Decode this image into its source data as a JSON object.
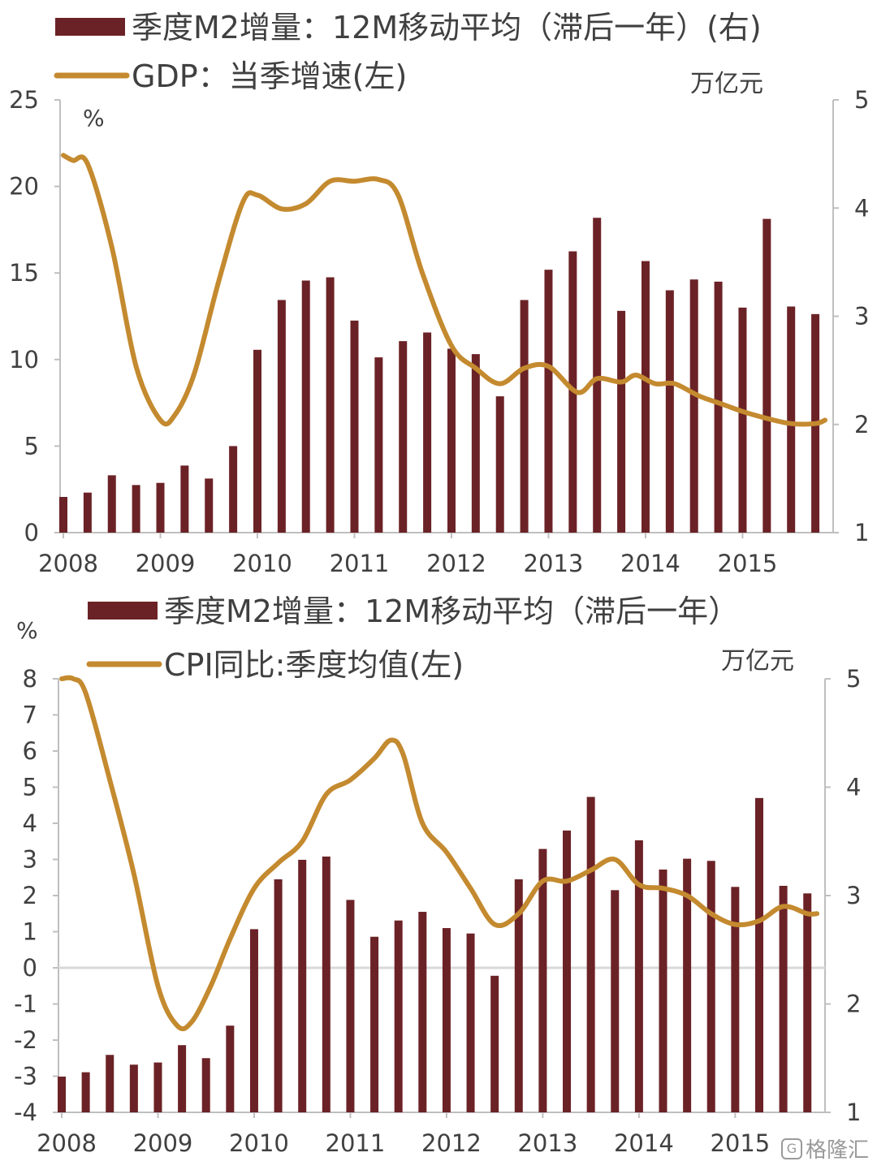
{
  "colors": {
    "bar": "#6B2226",
    "line": "#C48A2F",
    "axis": "#BFBFBF",
    "text": "#404040",
    "zero": "#D9D9D9"
  },
  "chart_data": [
    {
      "type": "bar+line",
      "legend": [
        {
          "kind": "bar",
          "label": "季度M2增量：12M移动平均（滞后一年）(右)"
        },
        {
          "kind": "line",
          "label": "GDP：当季增速(左)"
        }
      ],
      "left_unit": "%",
      "right_unit": "万亿元",
      "left_axis": {
        "min": 0,
        "max": 25,
        "ticks": [
          "0",
          "5",
          "10",
          "15",
          "20",
          "25"
        ]
      },
      "right_axis": {
        "min": 1,
        "max": 5,
        "ticks": [
          "1",
          "2",
          "3",
          "4",
          "5"
        ]
      },
      "x_ticks": [
        "2008",
        "2009",
        "2010",
        "2011",
        "2012",
        "2013",
        "2014",
        "2015"
      ],
      "x_range": [
        2008.0,
        2015.9
      ],
      "bars": {
        "name": "季度M2增量：12M移动平均（滞后一年）",
        "x": [
          2008.0,
          2008.25,
          2008.5,
          2008.75,
          2009.0,
          2009.25,
          2009.5,
          2009.75,
          2010.0,
          2010.25,
          2010.5,
          2010.75,
          2011.0,
          2011.25,
          2011.5,
          2011.75,
          2012.0,
          2012.25,
          2012.5,
          2012.75,
          2013.0,
          2013.25,
          2013.5,
          2013.75,
          2014.0,
          2014.25,
          2014.5,
          2014.75,
          2015.0,
          2015.25,
          2015.5,
          2015.75
        ],
        "values": [
          1.33,
          1.37,
          1.53,
          1.44,
          1.46,
          1.62,
          1.5,
          1.8,
          2.69,
          3.15,
          3.33,
          3.36,
          2.96,
          2.62,
          2.77,
          2.85,
          2.7,
          2.65,
          2.26,
          3.15,
          3.43,
          3.6,
          3.91,
          3.05,
          3.51,
          3.24,
          3.34,
          3.32,
          3.08,
          3.9,
          3.09,
          3.02
        ]
      },
      "line": {
        "name": "GDP：当季增速",
        "x": [
          2008.0,
          2008.1,
          2008.25,
          2008.5,
          2008.75,
          2009.0,
          2009.15,
          2009.35,
          2009.6,
          2009.85,
          2010.0,
          2010.25,
          2010.5,
          2010.75,
          2011.0,
          2011.25,
          2011.45,
          2011.7,
          2012.0,
          2012.25,
          2012.5,
          2012.75,
          2013.0,
          2013.3,
          2013.5,
          2013.75,
          2013.9,
          2014.1,
          2014.3,
          2014.55,
          2014.8,
          2015.0,
          2015.25,
          2015.5,
          2015.75,
          2015.85
        ],
        "values": [
          21.8,
          21.5,
          21.3,
          16.5,
          9.6,
          6.5,
          6.8,
          9.2,
          14.5,
          19.1,
          19.5,
          18.7,
          19.0,
          20.3,
          20.3,
          20.4,
          19.5,
          15.0,
          10.8,
          9.5,
          8.6,
          9.5,
          9.6,
          8.1,
          8.9,
          8.7,
          9.1,
          8.6,
          8.6,
          7.9,
          7.4,
          7.0,
          6.6,
          6.3,
          6.3,
          6.5
        ]
      }
    },
    {
      "type": "bar+line",
      "legend": [
        {
          "kind": "bar",
          "label": "季度M2增量：12M移动平均（滞后一年）"
        },
        {
          "kind": "line",
          "label": "CPI同比:季度均值(左)"
        }
      ],
      "left_unit": "%",
      "right_unit": "万亿元",
      "left_axis": {
        "min": -4,
        "max": 8,
        "ticks": [
          "-4",
          "-3",
          "-2",
          "-1",
          "0",
          "1",
          "2",
          "3",
          "4",
          "5",
          "6",
          "7",
          "8"
        ]
      },
      "right_axis": {
        "min": 1,
        "max": 5,
        "ticks": [
          "1",
          "2",
          "3",
          "4",
          "5"
        ]
      },
      "x_ticks": [
        "2008",
        "2009",
        "2010",
        "2011",
        "2012",
        "2013",
        "2014",
        "2015"
      ],
      "x_range": [
        2008.0,
        2015.9
      ],
      "bars": {
        "name": "季度M2增量：12M移动平均（滞后一年）",
        "x": [
          2008.0,
          2008.25,
          2008.5,
          2008.75,
          2009.0,
          2009.25,
          2009.5,
          2009.75,
          2010.0,
          2010.25,
          2010.5,
          2010.75,
          2011.0,
          2011.25,
          2011.5,
          2011.75,
          2012.0,
          2012.25,
          2012.5,
          2012.75,
          2013.0,
          2013.25,
          2013.5,
          2013.75,
          2014.0,
          2014.25,
          2014.5,
          2014.75,
          2015.0,
          2015.25,
          2015.5,
          2015.75
        ],
        "values": [
          1.33,
          1.37,
          1.53,
          1.44,
          1.46,
          1.62,
          1.5,
          1.8,
          2.69,
          3.15,
          3.33,
          3.36,
          2.96,
          2.62,
          2.77,
          2.85,
          2.7,
          2.65,
          2.26,
          3.15,
          3.43,
          3.6,
          3.91,
          3.05,
          3.51,
          3.24,
          3.34,
          3.32,
          3.08,
          3.9,
          3.09,
          3.02
        ]
      },
      "line": {
        "name": "CPI同比:季度均值",
        "x": [
          2008.0,
          2008.12,
          2008.25,
          2008.5,
          2008.75,
          2009.0,
          2009.2,
          2009.35,
          2009.55,
          2009.75,
          2010.0,
          2010.25,
          2010.5,
          2010.75,
          2011.0,
          2011.25,
          2011.42,
          2011.55,
          2011.75,
          2012.0,
          2012.25,
          2012.5,
          2012.75,
          2013.0,
          2013.25,
          2013.5,
          2013.75,
          2014.0,
          2014.25,
          2014.5,
          2014.75,
          2015.0,
          2015.25,
          2015.5,
          2015.75,
          2015.85
        ],
        "values": [
          8.0,
          8.0,
          7.6,
          5.2,
          2.6,
          -0.5,
          -1.6,
          -1.5,
          -0.5,
          0.8,
          2.2,
          2.9,
          3.5,
          4.8,
          5.2,
          5.8,
          6.3,
          5.9,
          4.0,
          3.2,
          2.2,
          1.2,
          1.5,
          2.4,
          2.4,
          2.7,
          3.0,
          2.3,
          2.2,
          2.0,
          1.5,
          1.2,
          1.3,
          1.7,
          1.5,
          1.5
        ]
      }
    }
  ],
  "watermark": "格隆汇"
}
